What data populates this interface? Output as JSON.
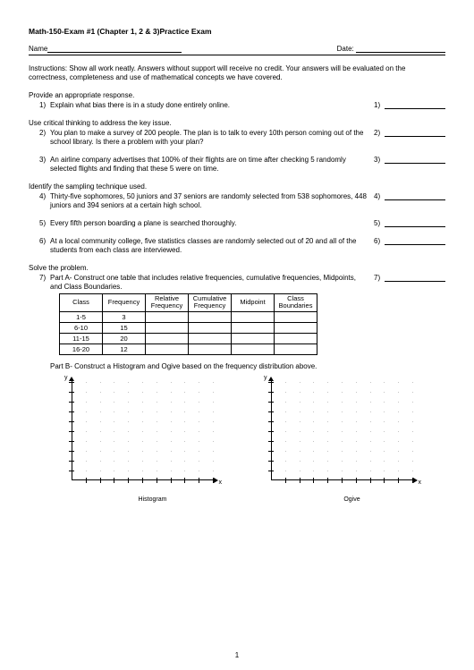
{
  "header": {
    "title": "Math-150-Exam #1 (Chapter 1, 2 & 3)Practice Exam",
    "name_label": "Name",
    "date_label": "Date:"
  },
  "instructions": "Instructions:   Show all work neatly.  Answers without support will receive no credit.  Your answers will be evaluated on the correctness, completeness and use of mathematical concepts we have covered.",
  "sections": {
    "s1": "Provide an appropriate response.",
    "s2": "Use critical thinking to address the key issue.",
    "s3": "Identify the sampling technique used.",
    "s4": "Solve the problem."
  },
  "questions": {
    "q1": {
      "n": "1)",
      "t": "Explain what bias there is in a study done entirely online.",
      "an": "1)"
    },
    "q2": {
      "n": "2)",
      "t": "You plan to make a survey of 200 people. The plan is to talk to every 10th person coming out of the school library. Is there a problem with your plan?",
      "an": "2)"
    },
    "q3": {
      "n": "3)",
      "t": "An airline company advertises that 100% of their flights are on time after checking 5 randomly selected flights and finding that these 5 were on time.",
      "an": "3)"
    },
    "q4": {
      "n": "4)",
      "t": "Thirty-five sophomores, 50 juniors and 37 seniors are randomly selected from 538 sophomores, 448 juniors and 394 seniors at a certain high school.",
      "an": "4)"
    },
    "q5": {
      "n": "5)",
      "t": "Every fifth person boarding a plane is searched thoroughly.",
      "an": "5)"
    },
    "q6": {
      "n": "6)",
      "t": "At a local community college, five statistics classes are randomly selected out of 20 and all of the students from each class are interviewed.",
      "an": "6)"
    },
    "q7": {
      "n": "7)",
      "t": "Part A- Construct one table that includes relative frequencies, cumulative frequencies, Midpoints, and Class Boundaries.",
      "an": "7)"
    }
  },
  "table": {
    "headers": [
      "Class",
      "Frequency",
      "Relative Frequency",
      "Cumulative Frequency",
      "Midpoint",
      "Class Boundaries"
    ],
    "rows": [
      [
        "1-5",
        "3",
        "",
        "",
        "",
        ""
      ],
      [
        "6-10",
        "15",
        "",
        "",
        "",
        ""
      ],
      [
        "11-15",
        "20",
        "",
        "",
        "",
        ""
      ],
      [
        "16-20",
        "12",
        "",
        "",
        "",
        ""
      ]
    ]
  },
  "partb": "Part B-  Construct a Histogram and Ogive based on the frequency distribution above.",
  "charts": {
    "ylabel": "y",
    "xlabel": "x",
    "histogram": "Histogram",
    "ogive": "Ogive",
    "grid": {
      "xticks": 10,
      "yticks": 10,
      "dot_color": "#b0b0b0"
    }
  },
  "pagenum": "1"
}
